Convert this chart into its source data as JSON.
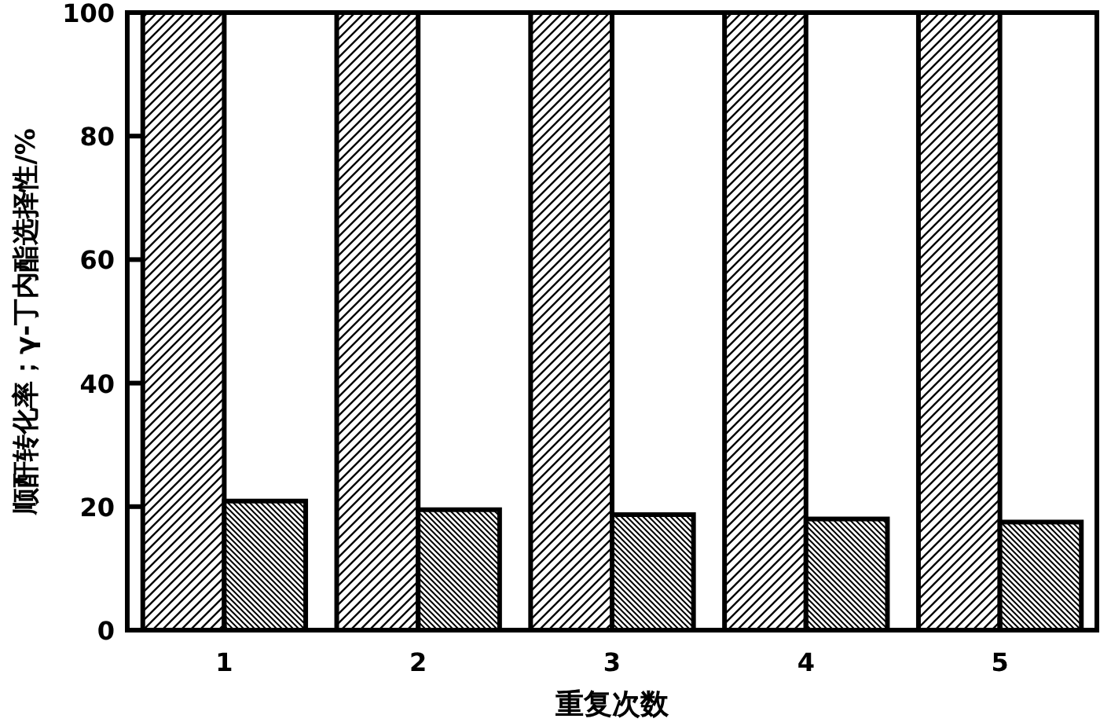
{
  "chart_data": {
    "type": "bar",
    "xlabel": "重复次数",
    "ylabel": "顺酐转化率；γ-丁内酯选择性/%",
    "categories": [
      "1",
      "2",
      "3",
      "4",
      "5"
    ],
    "series": [
      {
        "color": "#000000",
        "values": [
          100,
          100,
          100,
          100,
          100
        ]
      },
      {
        "color": "#000000",
        "values": [
          20.9,
          19.5,
          18.7,
          18.0,
          17.5
        ]
      }
    ],
    "ylim": [
      0,
      100
    ],
    "yticks": [
      0,
      20,
      40,
      60,
      80,
      100
    ],
    "grid": false
  }
}
